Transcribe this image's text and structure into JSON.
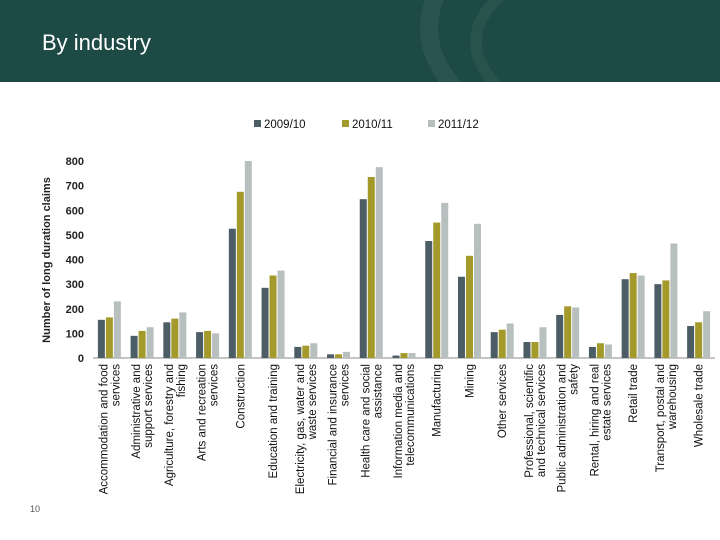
{
  "page": {
    "title": "By industry",
    "page_number": "10"
  },
  "colors": {
    "header_bg": "#1d4a44",
    "s1": "#4d5d66",
    "s2": "#a39a2b",
    "s3": "#b8bfbf"
  },
  "chart_data": {
    "type": "bar",
    "title": "",
    "xlabel": "",
    "ylabel": "Number of long duration claims",
    "ylim": [
      0,
      800
    ],
    "yticks": [
      0,
      100,
      200,
      300,
      400,
      500,
      600,
      700,
      800
    ],
    "legend_position": "top",
    "categories": [
      [
        "Accommodation and food",
        "services"
      ],
      [
        "Administrative and",
        "support services"
      ],
      [
        "Agriculture, forestry and",
        "fishing"
      ],
      [
        "Arts and recreation",
        "services"
      ],
      [
        "Construction"
      ],
      [
        "Education and training"
      ],
      [
        "Electricity, gas, water and",
        "waste services"
      ],
      [
        "Financial and insurance",
        "services"
      ],
      [
        "Health care and social",
        "assistance"
      ],
      [
        "Information media and",
        "telecommunications"
      ],
      [
        "Manufacturing"
      ],
      [
        "Mining"
      ],
      [
        "Other services"
      ],
      [
        "Professional, scientific",
        "and technical services"
      ],
      [
        "Public administration and",
        "safety"
      ],
      [
        "Rental, hiring and real",
        "estate services"
      ],
      [
        "Retail trade"
      ],
      [
        "Transport, postal and",
        "warehousing"
      ],
      [
        "Wholesale trade"
      ]
    ],
    "series": [
      {
        "name": "2009/10",
        "color": "#4d5d66",
        "values": [
          155,
          90,
          145,
          105,
          525,
          285,
          45,
          15,
          645,
          10,
          475,
          330,
          105,
          65,
          175,
          45,
          320,
          300,
          130
        ]
      },
      {
        "name": "2010/11",
        "color": "#a39a2b",
        "values": [
          165,
          110,
          160,
          110,
          675,
          335,
          50,
          15,
          735,
          20,
          550,
          415,
          115,
          65,
          210,
          60,
          345,
          315,
          145
        ]
      },
      {
        "name": "2011/12",
        "color": "#b8bfbf",
        "values": [
          230,
          125,
          185,
          100,
          800,
          355,
          60,
          25,
          775,
          20,
          630,
          545,
          140,
          125,
          205,
          55,
          335,
          465,
          190
        ]
      }
    ]
  }
}
